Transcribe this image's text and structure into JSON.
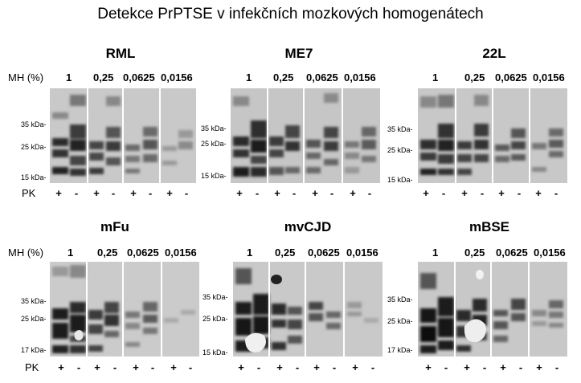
{
  "title": "Detekce PrPTSE v infekčních mozkových homogenátech",
  "labels": {
    "mh": "MH (%)",
    "pk": "PK",
    "plus": "+",
    "minus": "-"
  },
  "concentrations": [
    "1",
    "0,25",
    "0,0625",
    "0,0156"
  ],
  "panels": [
    {
      "strain": "RML",
      "markers": [
        "35 kDa-",
        "25 kDa-",
        "15 kDa-"
      ]
    },
    {
      "strain": "ME7",
      "markers": [
        "35 kDa-",
        "25 kDa-",
        "15 kDa-"
      ]
    },
    {
      "strain": "22L",
      "markers": [
        "35 kDa-",
        "25 kDa-",
        "15 kDa-"
      ]
    },
    {
      "strain": "mFu",
      "markers": [
        "35 kDa-",
        "25 kDa-",
        "17 kDa-"
      ]
    },
    {
      "strain": "mvCJD",
      "markers": [
        "35 kDa-",
        "25 kDa-",
        "15 kDa-"
      ]
    },
    {
      "strain": "mBSE",
      "markers": [
        "35 kDa-",
        "25 kDa-",
        "17 kDa-"
      ]
    }
  ],
  "colors": {
    "blot_background": "#c8c8c8",
    "band_dark": "#1a1a1a",
    "separator": "#ffffff"
  }
}
